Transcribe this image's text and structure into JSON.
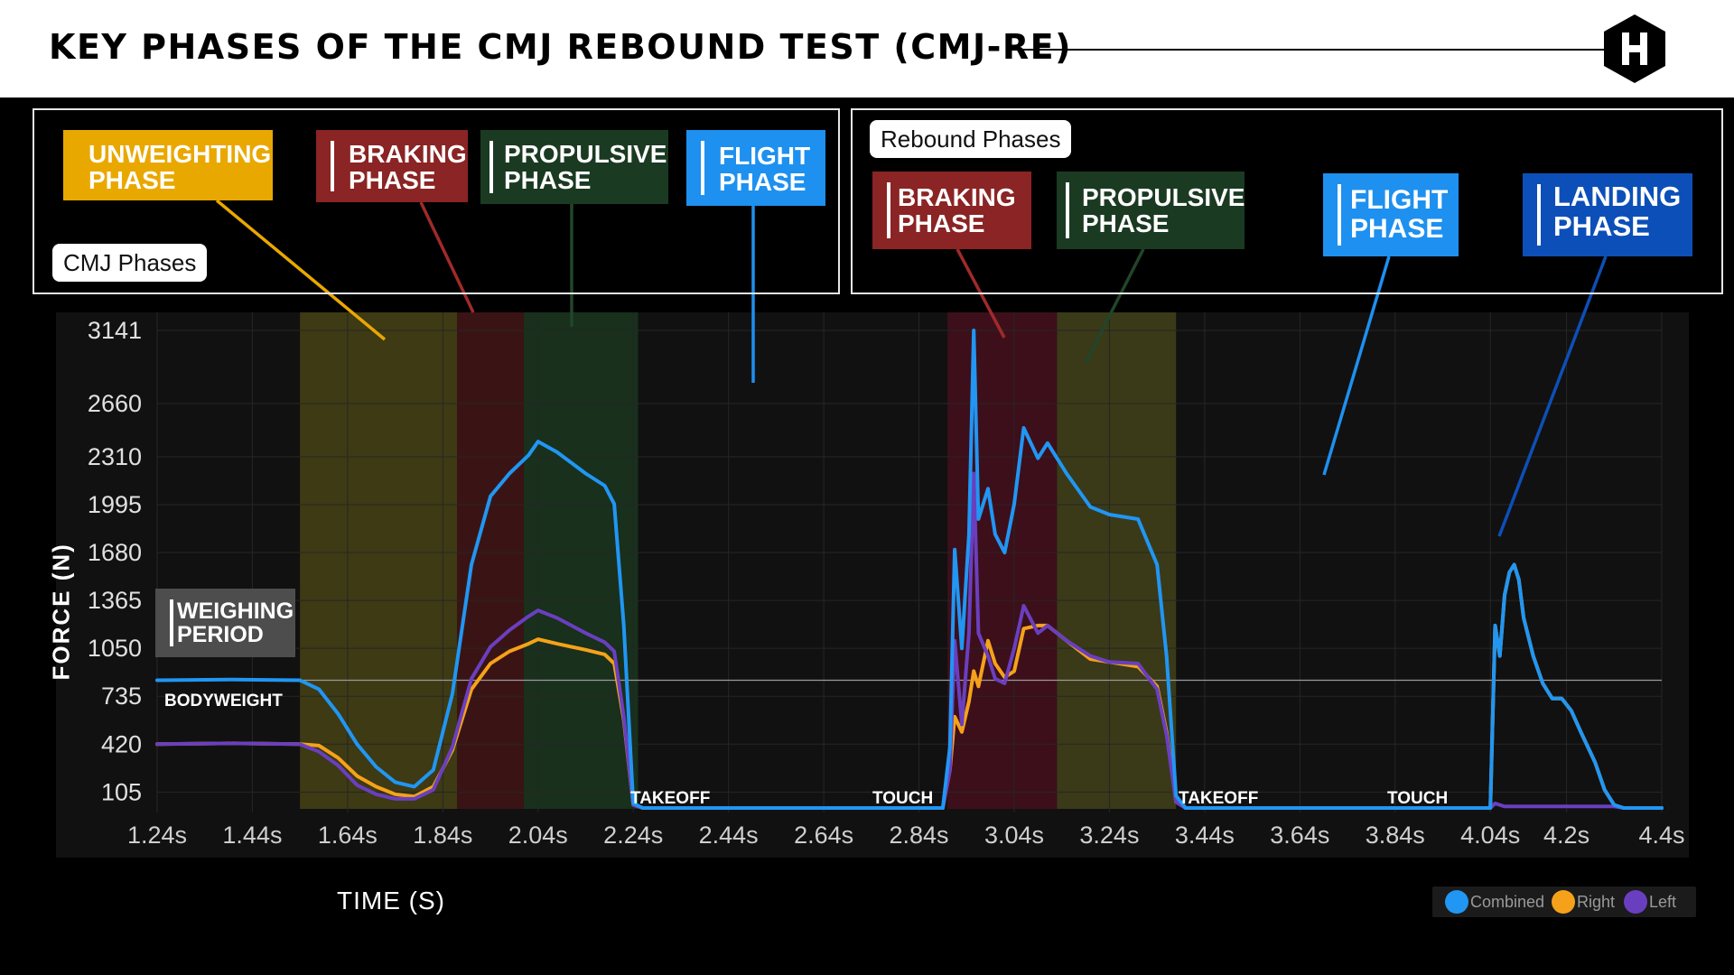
{
  "header": {
    "title": "KEY PHASES OF THE CMJ REBOUND TEST (CMJ-RE)"
  },
  "colors": {
    "combined": "#2196f3",
    "right": "#f5a21a",
    "left": "#6a3fbf",
    "unweighting": "#e9a800",
    "braking": "#8b2424",
    "propulsive": "#1b3a22",
    "flight": "#1e90f0",
    "landing": "#0d4fb8"
  },
  "cmj_panel": {
    "pill": "CMJ Phases",
    "phases": [
      {
        "id": "unweighting",
        "line1": "UNWEIGHTING",
        "line2": "PHASE"
      },
      {
        "id": "braking",
        "line1": "BRAKING",
        "line2": "PHASE"
      },
      {
        "id": "propulsive",
        "line1": "PROPULSIVE",
        "line2": "PHASE"
      },
      {
        "id": "flight",
        "line1": "FLIGHT",
        "line2": "PHASE"
      }
    ]
  },
  "rebound_panel": {
    "pill": "Rebound Phases",
    "phases": [
      {
        "id": "braking",
        "line1": "BRAKING",
        "line2": "PHASE"
      },
      {
        "id": "propulsive",
        "line1": "PROPULSIVE",
        "line2": "PHASE"
      },
      {
        "id": "flight",
        "line1": "FLIGHT",
        "line2": "PHASE"
      },
      {
        "id": "landing",
        "line1": "LANDING",
        "line2": "PHASE"
      }
    ]
  },
  "weighing": {
    "line1": "WEIGHING",
    "line2": "PERIOD"
  },
  "annotations": {
    "bodyweight": "BODYWEIGHT",
    "takeoff1": "TAKEOFF",
    "touch1": "TOUCH",
    "takeoff2": "TAKEOFF",
    "touch2": "TOUCH"
  },
  "legend": {
    "combined": "Combined",
    "right": "Right",
    "left": "Left"
  },
  "chart_data": {
    "type": "line",
    "title": "KEY PHASES OF THE CMJ REBOUND TEST (CMJ-RE)",
    "xlabel": "TIME (S)",
    "ylabel": "FORCE (N)",
    "x_ticks": [
      "1.24s",
      "1.44s",
      "1.64s",
      "1.84s",
      "2.04s",
      "2.24s",
      "2.44s",
      "2.64s",
      "2.84s",
      "3.04s",
      "3.24s",
      "3.44s",
      "3.64s",
      "3.84s",
      "4.04s",
      "4.2s",
      "4.4s"
    ],
    "x_tick_values": [
      1.24,
      1.44,
      1.64,
      1.84,
      2.04,
      2.24,
      2.44,
      2.64,
      2.84,
      3.04,
      3.24,
      3.44,
      3.64,
      3.84,
      4.04,
      4.2,
      4.4
    ],
    "y_ticks": [
      3141,
      2660,
      2310,
      1995,
      1680,
      1365,
      1050,
      735,
      420,
      105
    ],
    "xlim": [
      1.24,
      4.4
    ],
    "ylim": [
      0,
      3141
    ],
    "bodyweight": 840,
    "bands": [
      {
        "phase": "unweighting",
        "x0": 1.54,
        "x1": 1.87
      },
      {
        "phase": "braking",
        "x0": 1.87,
        "x1": 2.01
      },
      {
        "phase": "propulsive",
        "x0": 2.01,
        "x1": 2.25
      },
      {
        "phase": "rebound-braking",
        "x0": 2.9,
        "x1": 3.13
      },
      {
        "phase": "rebound-propulsive",
        "x0": 3.13,
        "x1": 3.38
      }
    ],
    "series": [
      {
        "name": "Combined",
        "x": [
          1.24,
          1.4,
          1.54,
          1.58,
          1.62,
          1.66,
          1.7,
          1.74,
          1.78,
          1.82,
          1.86,
          1.9,
          1.94,
          1.98,
          2.02,
          2.04,
          2.08,
          2.14,
          2.18,
          2.2,
          2.22,
          2.24,
          2.26,
          2.4,
          2.6,
          2.8,
          2.89,
          2.905,
          2.915,
          2.93,
          2.945,
          2.955,
          2.965,
          2.985,
          3.0,
          3.02,
          3.04,
          3.06,
          3.09,
          3.11,
          3.15,
          3.2,
          3.24,
          3.3,
          3.34,
          3.36,
          3.38,
          3.4,
          3.6,
          3.8,
          4.0,
          4.04,
          4.05,
          4.06,
          4.07,
          4.08,
          4.09,
          4.1,
          4.11,
          4.13,
          4.15,
          4.17,
          4.19,
          4.21,
          4.23,
          4.26,
          4.28,
          4.3,
          4.32,
          4.36,
          4.4
        ],
        "values": [
          840,
          845,
          840,
          780,
          620,
          420,
          270,
          170,
          140,
          250,
          750,
          1600,
          2050,
          2200,
          2320,
          2410,
          2340,
          2200,
          2120,
          2000,
          1200,
          30,
          0,
          0,
          0,
          0,
          0,
          400,
          1700,
          1050,
          1800,
          3141,
          1900,
          2100,
          1800,
          1680,
          2000,
          2500,
          2300,
          2400,
          2200,
          1980,
          1930,
          1900,
          1600,
          1000,
          80,
          0,
          0,
          0,
          0,
          0,
          1200,
          1000,
          1400,
          1550,
          1600,
          1500,
          1250,
          1000,
          820,
          720,
          720,
          640,
          500,
          300,
          120,
          20,
          0,
          0,
          0
        ]
      },
      {
        "name": "Right",
        "x": [
          1.24,
          1.4,
          1.54,
          1.58,
          1.62,
          1.66,
          1.7,
          1.74,
          1.78,
          1.82,
          1.86,
          1.9,
          1.94,
          1.98,
          2.02,
          2.04,
          2.08,
          2.14,
          2.18,
          2.2,
          2.22,
          2.24,
          2.26,
          2.4,
          2.6,
          2.8,
          2.89,
          2.905,
          2.915,
          2.93,
          2.945,
          2.955,
          2.965,
          2.985,
          3.0,
          3.02,
          3.04,
          3.06,
          3.09,
          3.11,
          3.15,
          3.2,
          3.24,
          3.3,
          3.34,
          3.36,
          3.38,
          3.4,
          3.6,
          3.8,
          4.0,
          4.04,
          4.05,
          4.06,
          4.07,
          4.08,
          4.09,
          4.1,
          4.11,
          4.13,
          4.15,
          4.17,
          4.19,
          4.21,
          4.23,
          4.26,
          4.28,
          4.3,
          4.32,
          4.36,
          4.4
        ],
        "values": [
          420,
          425,
          420,
          410,
          330,
          210,
          140,
          90,
          75,
          140,
          380,
          780,
          950,
          1030,
          1080,
          1110,
          1080,
          1040,
          1010,
          950,
          580,
          20,
          0,
          0,
          0,
          0,
          0,
          250,
          600,
          500,
          700,
          900,
          800,
          1100,
          950,
          860,
          900,
          1180,
          1200,
          1200,
          1100,
          980,
          960,
          930,
          800,
          500,
          40,
          0,
          0,
          0,
          0,
          0,
          1200,
          1000,
          1400,
          1550,
          1600,
          1500,
          1250,
          1000,
          820,
          720,
          720,
          640,
          500,
          300,
          120,
          20,
          0,
          0,
          0
        ]
      },
      {
        "name": "Left",
        "x": [
          1.24,
          1.4,
          1.54,
          1.58,
          1.62,
          1.66,
          1.7,
          1.74,
          1.78,
          1.82,
          1.86,
          1.9,
          1.94,
          1.98,
          2.02,
          2.04,
          2.08,
          2.14,
          2.18,
          2.2,
          2.22,
          2.24,
          2.26,
          2.4,
          2.6,
          2.8,
          2.89,
          2.905,
          2.915,
          2.93,
          2.945,
          2.955,
          2.965,
          2.985,
          3.0,
          3.02,
          3.04,
          3.06,
          3.09,
          3.11,
          3.15,
          3.2,
          3.24,
          3.3,
          3.34,
          3.36,
          3.38,
          3.4,
          3.6,
          3.8,
          4.0,
          4.04,
          4.05,
          4.06,
          4.07,
          4.08,
          4.09,
          4.1,
          4.11,
          4.13,
          4.15,
          4.17,
          4.19,
          4.21,
          4.23,
          4.26,
          4.28,
          4.3,
          4.32,
          4.36,
          4.4
        ],
        "values": [
          420,
          425,
          420,
          370,
          280,
          150,
          90,
          60,
          60,
          120,
          400,
          850,
          1060,
          1170,
          1260,
          1300,
          1250,
          1150,
          1090,
          1030,
          600,
          20,
          0,
          0,
          0,
          0,
          0,
          250,
          1100,
          550,
          1150,
          2200,
          1150,
          1000,
          850,
          820,
          1050,
          1330,
          1150,
          1200,
          1100,
          1000,
          960,
          950,
          780,
          480,
          40,
          0,
          0,
          0,
          0,
          0,
          30,
          20,
          10,
          10,
          10,
          10,
          10,
          10,
          10,
          10,
          10,
          10,
          10,
          10,
          10,
          10,
          0,
          0,
          0
        ]
      }
    ]
  }
}
